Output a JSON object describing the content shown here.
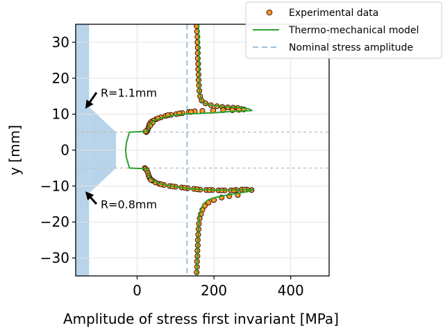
{
  "chart_data": {
    "type": "scatter",
    "xlabel": "Amplitude of stress first invariant [MPa]",
    "ylabel": "y [mm]",
    "xlim": [
      -160,
      500
    ],
    "ylim": [
      -35,
      35
    ],
    "xticks": [
      0,
      200,
      400
    ],
    "yticks": [
      -30,
      -20,
      -10,
      0,
      10,
      20,
      30
    ],
    "grid": true,
    "legend_position": "top-right",
    "nominal_stress_amplitude": 130,
    "notch_lines_y": [
      5,
      -5
    ],
    "annotations": [
      {
        "text": "R=1.1mm",
        "point": [
          -135,
          11.5
        ],
        "text_at": [
          -95,
          16
        ]
      },
      {
        "text": "R=0.8mm",
        "point": [
          -135,
          -11.5
        ],
        "text_at": [
          -95,
          -15
        ]
      }
    ],
    "specimen": {
      "bar_x": [
        -160,
        -125
      ],
      "notch_profile": [
        [
          -125,
          12
        ],
        [
          -55,
          5
        ],
        [
          -55,
          -5
        ],
        [
          -125,
          -12
        ]
      ],
      "color": "#b8d4ea"
    },
    "series": [
      {
        "name": "Experimental data",
        "kind": "scatter",
        "color": "#ff9a1f",
        "edge": "#3a1010",
        "points": [
          [
            155,
            34.5
          ],
          [
            156,
            33
          ],
          [
            157,
            31.5
          ],
          [
            157,
            30
          ],
          [
            158,
            28.5
          ],
          [
            158,
            27
          ],
          [
            158,
            25.5
          ],
          [
            159,
            24
          ],
          [
            159,
            22.5
          ],
          [
            160,
            21
          ],
          [
            160,
            19.5
          ],
          [
            161,
            18
          ],
          [
            162,
            16.5
          ],
          [
            164,
            15
          ],
          [
            168,
            13.8
          ],
          [
            178,
            13
          ],
          [
            192,
            12.5
          ],
          [
            208,
            12.2
          ],
          [
            222,
            12
          ],
          [
            236,
            11.9
          ],
          [
            250,
            11.8
          ],
          [
            262,
            11.7
          ],
          [
            272,
            11.4
          ],
          [
            150,
            10.8
          ],
          [
            135,
            10.6
          ],
          [
            118,
            10.3
          ],
          [
            102,
            10
          ],
          [
            88,
            9.8
          ],
          [
            74,
            9.5
          ],
          [
            62,
            9.1
          ],
          [
            50,
            8.6
          ],
          [
            42,
            8.2
          ],
          [
            36,
            7.8
          ],
          [
            32,
            7.2
          ],
          [
            30,
            6.4
          ],
          [
            28,
            5.8
          ],
          [
            26,
            5.3
          ],
          [
            24,
            5
          ],
          [
            22,
            5.2
          ],
          [
            40,
            7.6
          ],
          [
            34,
            6.8
          ],
          [
            54,
            8.8
          ],
          [
            80,
            9.7
          ],
          [
            110,
            10.2
          ],
          [
            140,
            10.6
          ],
          [
            170,
            10.9
          ],
          [
            198,
            11
          ],
          [
            224,
            11.1
          ],
          [
            248,
            11.1
          ],
          [
            265,
            11.2
          ],
          [
            278,
            11.3
          ],
          [
            20,
            -5
          ],
          [
            22,
            -5.2
          ],
          [
            25,
            -5.6
          ],
          [
            28,
            -6.3
          ],
          [
            30,
            -7
          ],
          [
            32,
            -7.6
          ],
          [
            35,
            -8.1
          ],
          [
            40,
            -8.5
          ],
          [
            48,
            -9
          ],
          [
            58,
            -9.4
          ],
          [
            70,
            -9.7
          ],
          [
            85,
            -10
          ],
          [
            100,
            -10.2
          ],
          [
            116,
            -10.4
          ],
          [
            132,
            -10.6
          ],
          [
            148,
            -10.8
          ],
          [
            164,
            -11
          ],
          [
            180,
            -11.1
          ],
          [
            196,
            -11.1
          ],
          [
            212,
            -11.2
          ],
          [
            228,
            -11.2
          ],
          [
            244,
            -11.2
          ],
          [
            258,
            -11.1
          ],
          [
            272,
            -11
          ],
          [
            286,
            -11
          ],
          [
            298,
            -11.1
          ],
          [
            36,
            -8.3
          ],
          [
            62,
            -9.5
          ],
          [
            92,
            -10.1
          ],
          [
            124,
            -10.5
          ],
          [
            156,
            -10.9
          ],
          [
            188,
            -11.1
          ],
          [
            220,
            -11.2
          ],
          [
            252,
            -11.2
          ],
          [
            280,
            -11
          ],
          [
            262,
            -12.5
          ],
          [
            240,
            -12.8
          ],
          [
            220,
            -13.2
          ],
          [
            200,
            -13.9
          ],
          [
            186,
            -14.6
          ],
          [
            176,
            -15.5
          ],
          [
            170,
            -16.6
          ],
          [
            166,
            -17.8
          ],
          [
            163,
            -19
          ],
          [
            161,
            -20.5
          ],
          [
            160,
            -22
          ],
          [
            159,
            -23.5
          ],
          [
            158,
            -25
          ],
          [
            158,
            -26.5
          ],
          [
            157,
            -28
          ],
          [
            157,
            -29.5
          ],
          [
            156,
            -31
          ],
          [
            156,
            -32.5
          ],
          [
            155,
            -34
          ]
        ]
      },
      {
        "name": "Thermo-mechanical model",
        "kind": "line",
        "color": "#2ca02c",
        "segments": [
          [
            [
              160,
              35
            ],
            [
              161,
              25
            ],
            [
              162,
              20
            ],
            [
              163,
              16
            ],
            [
              168,
              13.5
            ],
            [
              185,
              12.6
            ],
            [
              230,
              12
            ],
            [
              270,
              11.8
            ],
            [
              290,
              11.5
            ],
            [
              300,
              11
            ],
            [
              280,
              10.9
            ],
            [
              240,
              10.7
            ],
            [
              200,
              10.4
            ],
            [
              160,
              10.2
            ],
            [
              120,
              10
            ],
            [
              90,
              9.6
            ],
            [
              65,
              9
            ],
            [
              48,
              8.4
            ],
            [
              36,
              7.5
            ],
            [
              30,
              6.3
            ],
            [
              26,
              5.2
            ],
            [
              -20,
              5
            ],
            [
              -28,
              2
            ],
            [
              -30,
              0
            ],
            [
              -28,
              -2
            ],
            [
              -20,
              -5
            ],
            [
              24,
              -5.2
            ],
            [
              28,
              -6.3
            ],
            [
              32,
              -7.5
            ],
            [
              42,
              -8.6
            ],
            [
              60,
              -9.4
            ],
            [
              90,
              -10
            ],
            [
              130,
              -10.6
            ],
            [
              170,
              -11
            ],
            [
              210,
              -11.1
            ],
            [
              250,
              -11.1
            ],
            [
              285,
              -11
            ],
            [
              303,
              -11
            ],
            [
              285,
              -11.6
            ],
            [
              250,
              -12.2
            ],
            [
              210,
              -13
            ],
            [
              185,
              -13.8
            ],
            [
              172,
              -15
            ],
            [
              166,
              -16.5
            ],
            [
              163,
              -18
            ],
            [
              160,
              -22
            ],
            [
              158,
              -27
            ],
            [
              156,
              -35
            ]
          ]
        ]
      },
      {
        "name": "Nominal stress amplitude",
        "kind": "vline",
        "color": "#8fb8d8"
      }
    ]
  }
}
